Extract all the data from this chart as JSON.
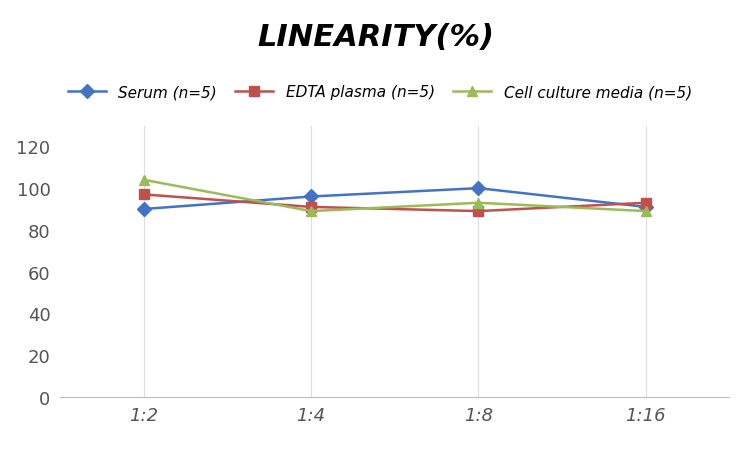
{
  "title": "LINEARITY(%)",
  "x_labels": [
    "1:2",
    "1:4",
    "1:8",
    "1:16"
  ],
  "x_positions": [
    0,
    1,
    2,
    3
  ],
  "series": [
    {
      "name": "Serum (n=5)",
      "values": [
        90,
        96,
        100,
        91
      ],
      "color": "#4472C4",
      "marker": "D",
      "linewidth": 1.8
    },
    {
      "name": "EDTA plasma (n=5)",
      "values": [
        97,
        91,
        89,
        93
      ],
      "color": "#C0504D",
      "marker": "s",
      "linewidth": 1.8
    },
    {
      "name": "Cell culture media (n=5)",
      "values": [
        104,
        89,
        93,
        89
      ],
      "color": "#9BBB59",
      "marker": "^",
      "linewidth": 1.8
    }
  ],
  "ylim": [
    0,
    130
  ],
  "yticks": [
    0,
    20,
    40,
    60,
    80,
    100,
    120
  ],
  "grid_color": "#DDDDDD",
  "background_color": "#FFFFFF",
  "title_fontsize": 22,
  "legend_fontsize": 11,
  "tick_fontsize": 13
}
